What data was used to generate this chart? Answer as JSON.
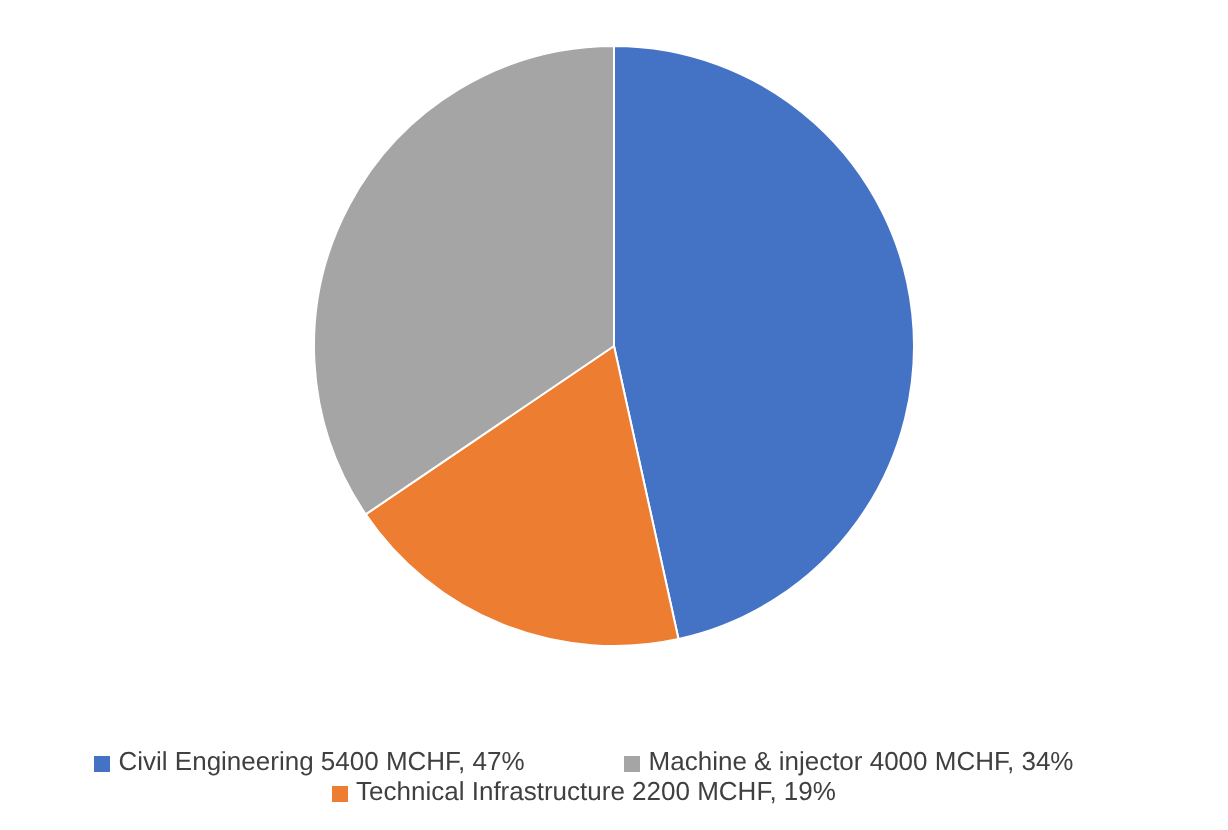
{
  "chart_data": {
    "type": "pie",
    "categories": [
      "Civil Engineering 5400 MCHF, 47%",
      "Technical Infrastructure 2200 MCHF, 19%",
      "Machine & injector 4000 MCHF, 34%"
    ],
    "values": [
      5400,
      2200,
      4000
    ],
    "colors": [
      "#4472c4",
      "#ed7d31",
      "#a5a5a5"
    ],
    "legend": "bottom"
  }
}
